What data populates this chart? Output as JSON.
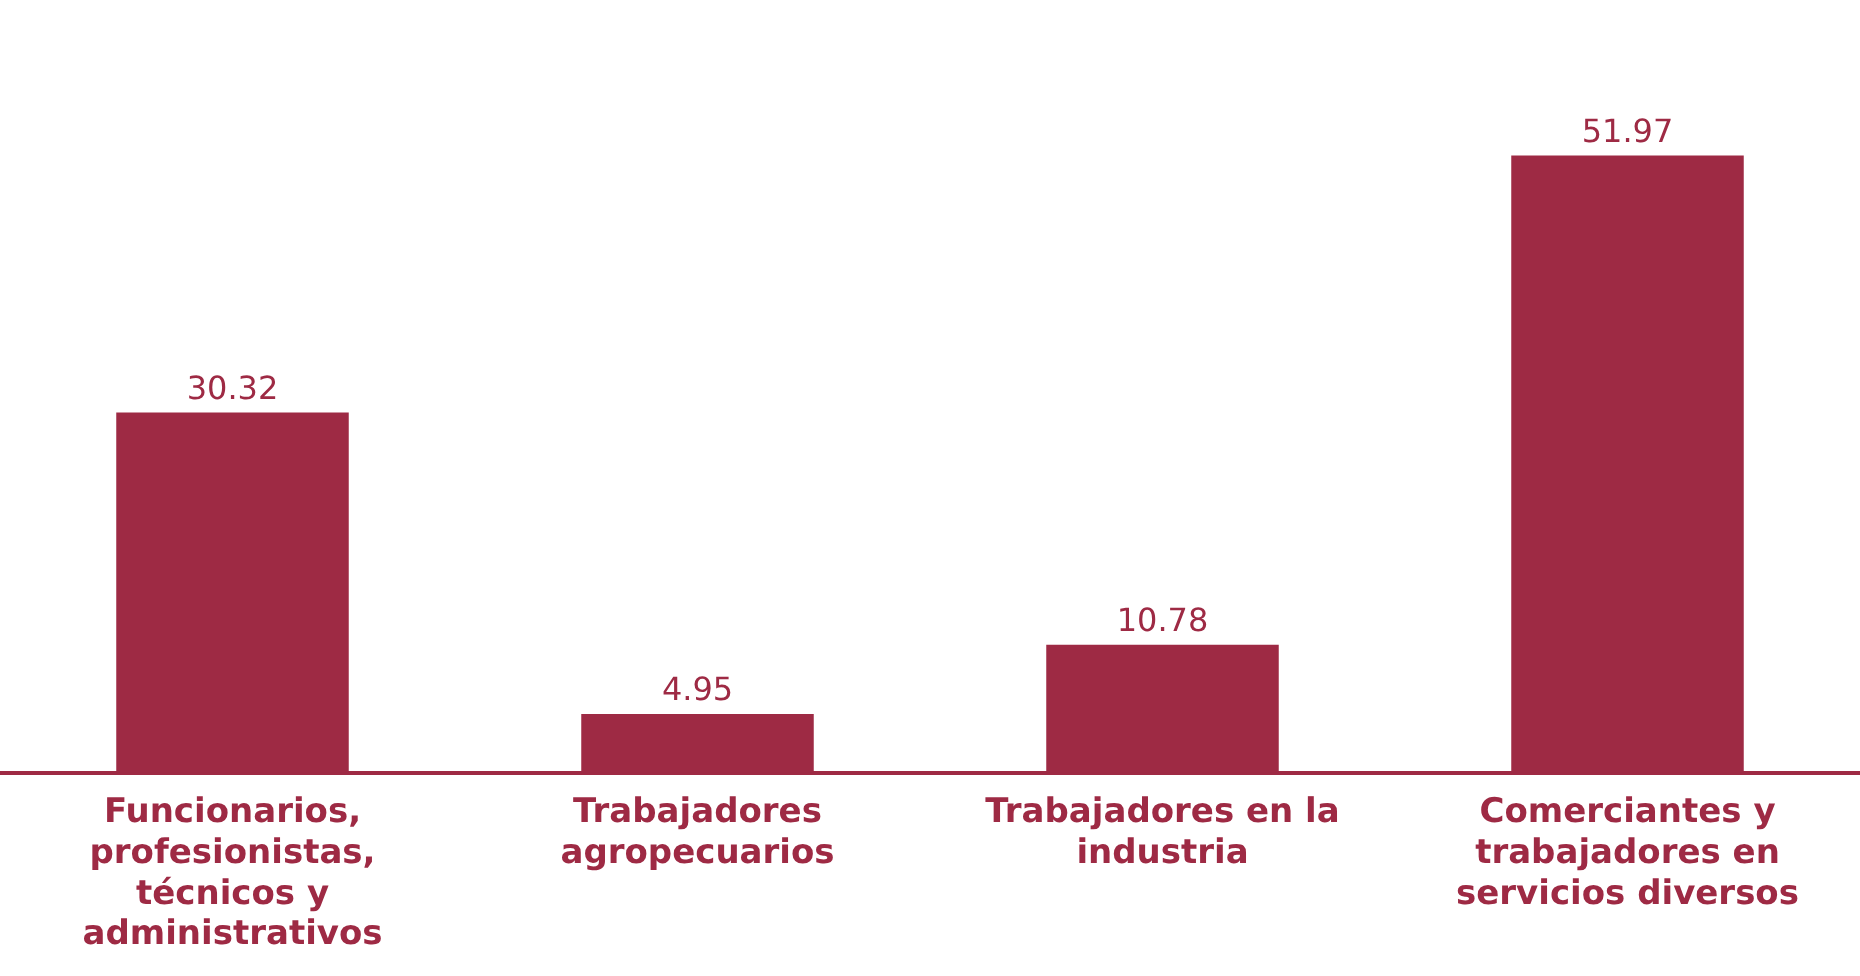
{
  "chart_data": {
    "type": "bar",
    "categories": [
      "Funcionarios, profesionistas, técnicos y administrativos",
      "Trabajadores agropecuarios",
      "Trabajadores en la industria",
      "Comerciantes y trabajadores en servicios diversos"
    ],
    "values": [
      30.32,
      4.95,
      10.78,
      51.97
    ],
    "color": "#9e2a44",
    "data_labels": true,
    "grid": false,
    "legend": false
  }
}
